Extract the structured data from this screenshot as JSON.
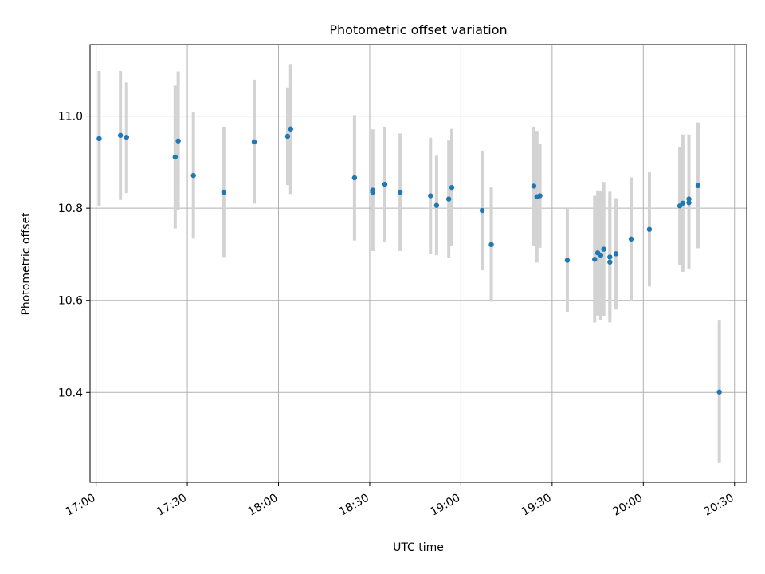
{
  "chart_data": {
    "type": "scatter",
    "title": "Photometric offset variation",
    "xlabel": "UTC time",
    "ylabel": "Photometric offset",
    "x_axis_type": "time",
    "xlim": [
      "16:58",
      "20:34"
    ],
    "ylim": [
      10.205,
      11.155
    ],
    "xticks": [
      "17:00",
      "17:30",
      "18:00",
      "18:30",
      "19:00",
      "19:30",
      "20:00",
      "20:30"
    ],
    "yticks": [
      10.4,
      10.6,
      10.8,
      11.0
    ],
    "ytick_labels": [
      "10.4",
      "10.6",
      "10.8",
      "11.0"
    ],
    "grid": true,
    "point_color": "#1f77b4",
    "errorbar_color": "#d3d3d3",
    "series": [
      {
        "points": [
          {
            "x": "17:01",
            "y": 10.951,
            "lo": 10.804,
            "hi": 11.098
          },
          {
            "x": "17:08",
            "y": 10.958,
            "lo": 10.818,
            "hi": 11.098
          },
          {
            "x": "17:10",
            "y": 10.954,
            "lo": 10.833,
            "hi": 11.073
          },
          {
            "x": "17:26",
            "y": 10.911,
            "lo": 10.756,
            "hi": 11.066
          },
          {
            "x": "17:27",
            "y": 10.946,
            "lo": 10.795,
            "hi": 11.097
          },
          {
            "x": "17:32",
            "y": 10.871,
            "lo": 10.734,
            "hi": 11.008
          },
          {
            "x": "17:42",
            "y": 10.835,
            "lo": 10.694,
            "hi": 10.977
          },
          {
            "x": "17:52",
            "y": 10.944,
            "lo": 10.81,
            "hi": 11.079
          },
          {
            "x": "18:03",
            "y": 10.956,
            "lo": 10.85,
            "hi": 11.062
          },
          {
            "x": "18:04",
            "y": 10.972,
            "lo": 10.831,
            "hi": 11.113
          },
          {
            "x": "18:25",
            "y": 10.866,
            "lo": 10.73,
            "hi": 11.002
          },
          {
            "x": "18:31",
            "y": 10.835,
            "lo": 10.707,
            "hi": 10.971
          },
          {
            "x": "18:31",
            "y": 10.839,
            "lo": 10.707,
            "hi": 10.971
          },
          {
            "x": "18:35",
            "y": 10.852,
            "lo": 10.727,
            "hi": 10.977
          },
          {
            "x": "18:40",
            "y": 10.835,
            "lo": 10.707,
            "hi": 10.962
          },
          {
            "x": "18:50",
            "y": 10.827,
            "lo": 10.701,
            "hi": 10.953
          },
          {
            "x": "18:52",
            "y": 10.806,
            "lo": 10.698,
            "hi": 10.914
          },
          {
            "x": "18:56",
            "y": 10.82,
            "lo": 10.693,
            "hi": 10.947
          },
          {
            "x": "18:57",
            "y": 10.845,
            "lo": 10.718,
            "hi": 10.972
          },
          {
            "x": "19:07",
            "y": 10.795,
            "lo": 10.665,
            "hi": 10.925
          },
          {
            "x": "19:10",
            "y": 10.721,
            "lo": 10.597,
            "hi": 10.847
          },
          {
            "x": "19:24",
            "y": 10.848,
            "lo": 10.718,
            "hi": 10.977
          },
          {
            "x": "19:25",
            "y": 10.825,
            "lo": 10.682,
            "hi": 10.968
          },
          {
            "x": "19:26",
            "y": 10.827,
            "lo": 10.714,
            "hi": 10.94
          },
          {
            "x": "19:35",
            "y": 10.687,
            "lo": 10.575,
            "hi": 10.8
          },
          {
            "x": "19:44",
            "y": 10.689,
            "lo": 10.552,
            "hi": 10.827
          },
          {
            "x": "19:45",
            "y": 10.703,
            "lo": 10.567,
            "hi": 10.839
          },
          {
            "x": "19:46",
            "y": 10.698,
            "lo": 10.558,
            "hi": 10.838
          },
          {
            "x": "19:47",
            "y": 10.711,
            "lo": 10.565,
            "hi": 10.857
          },
          {
            "x": "19:49",
            "y": 10.694,
            "lo": 10.552,
            "hi": 10.836
          },
          {
            "x": "19:49",
            "y": 10.683,
            "lo": 10.562,
            "hi": 10.818
          },
          {
            "x": "19:51",
            "y": 10.701,
            "lo": 10.58,
            "hi": 10.822
          },
          {
            "x": "19:56",
            "y": 10.733,
            "lo": 10.599,
            "hi": 10.867
          },
          {
            "x": "20:02",
            "y": 10.754,
            "lo": 10.63,
            "hi": 10.878
          },
          {
            "x": "20:12",
            "y": 10.805,
            "lo": 10.677,
            "hi": 10.933
          },
          {
            "x": "20:13",
            "y": 10.811,
            "lo": 10.662,
            "hi": 10.96
          },
          {
            "x": "20:15",
            "y": 10.812,
            "lo": 10.668,
            "hi": 10.96
          },
          {
            "x": "20:15",
            "y": 10.82,
            "lo": 10.682,
            "hi": 10.958
          },
          {
            "x": "20:18",
            "y": 10.849,
            "lo": 10.713,
            "hi": 10.986
          },
          {
            "x": "20:25",
            "y": 10.401,
            "lo": 10.247,
            "hi": 10.556
          }
        ]
      }
    ]
  }
}
